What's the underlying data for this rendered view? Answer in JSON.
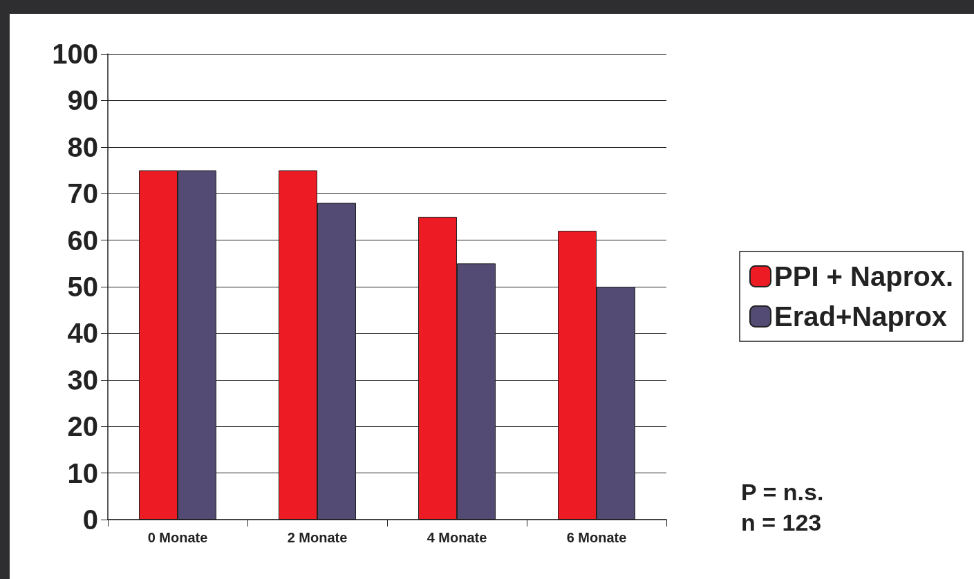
{
  "chart_data": {
    "type": "bar",
    "categories": [
      "0 Monate",
      "2 Monate",
      "4 Monate",
      "6 Monate"
    ],
    "series": [
      {
        "name": "PPI + Naprox.",
        "color": "#ed1c24",
        "values": [
          75,
          75,
          65,
          62
        ]
      },
      {
        "name": "Erad+Naprox",
        "color": "#544b74",
        "values": [
          75,
          68,
          55,
          50
        ]
      }
    ],
    "ylim": [
      0,
      100
    ],
    "yticks": [
      0,
      10,
      20,
      30,
      40,
      50,
      60,
      70,
      80,
      90,
      100
    ],
    "grid": "y",
    "legend": "right",
    "annotations": [
      "P = n.s.",
      "n = 123"
    ]
  }
}
